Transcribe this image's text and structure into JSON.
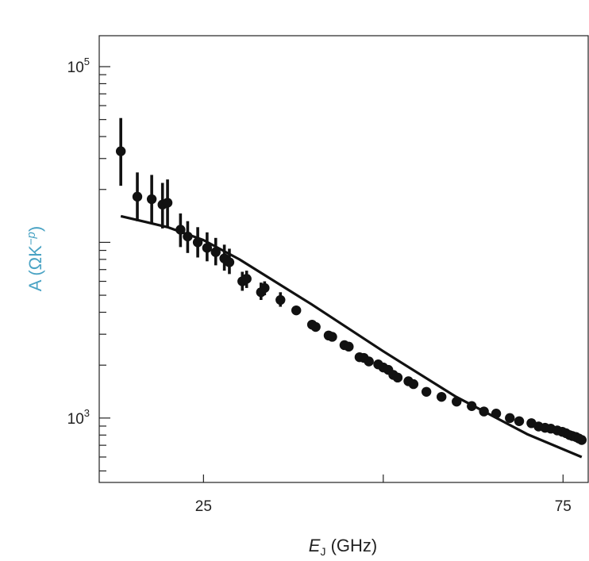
{
  "chart_data": {
    "type": "scatter",
    "title": "",
    "xlabel": {
      "main": "E",
      "sub": "J",
      "unit": " (GHz)"
    },
    "ylabel": {
      "main": "A (ΩK",
      "sup": "−p",
      "close": ")"
    },
    "ylabel_color": "#4aa3c4",
    "y_scale": "log",
    "xlim": [
      10.5,
      78.5
    ],
    "ylim": [
      430,
      150000
    ],
    "x_ticks": [
      25,
      50,
      75
    ],
    "x_tick_labels": [
      "25",
      "",
      "75"
    ],
    "y_tick_labels": [
      {
        "value": 100000,
        "base": "10",
        "exp": "5"
      },
      {
        "value": 1000,
        "base": "10",
        "exp": "3"
      }
    ],
    "grid": false,
    "points": [
      {
        "x": 13.5,
        "y": 33000,
        "err": [
          21000,
          51000
        ]
      },
      {
        "x": 15.8,
        "y": 18200,
        "err": [
          13200,
          25000
        ]
      },
      {
        "x": 17.8,
        "y": 17600,
        "err": [
          12900,
          24200
        ]
      },
      {
        "x": 19.3,
        "y": 16400,
        "err": [
          12000,
          21800
        ]
      },
      {
        "x": 20.0,
        "y": 16800,
        "err": [
          12200,
          22800
        ]
      },
      {
        "x": 21.8,
        "y": 11800,
        "err": [
          9400,
          14600
        ]
      },
      {
        "x": 22.8,
        "y": 10800,
        "err": [
          8700,
          13200
        ]
      },
      {
        "x": 24.2,
        "y": 10000,
        "err": [
          8200,
          12200
        ]
      },
      {
        "x": 25.5,
        "y": 9300,
        "err": [
          7800,
          11400
        ]
      },
      {
        "x": 26.7,
        "y": 8800,
        "err": [
          7400,
          10600
        ]
      },
      {
        "x": 27.9,
        "y": 8100,
        "err": [
          6900,
          9700
        ]
      },
      {
        "x": 28.6,
        "y": 7700,
        "err": [
          6600,
          9200
        ]
      },
      {
        "x": 30.4,
        "y": 6000,
        "err": [
          5300,
          6800
        ]
      },
      {
        "x": 31.0,
        "y": 6200,
        "err": [
          5500,
          6900
        ]
      },
      {
        "x": 33.0,
        "y": 5200,
        "err": [
          4700,
          5900
        ]
      },
      {
        "x": 33.5,
        "y": 5500,
        "err": [
          5000,
          6000
        ]
      },
      {
        "x": 35.7,
        "y": 4700,
        "err": [
          4300,
          5200
        ]
      },
      {
        "x": 37.9,
        "y": 4100
      },
      {
        "x": 40.1,
        "y": 3400
      },
      {
        "x": 40.6,
        "y": 3300
      },
      {
        "x": 42.4,
        "y": 2950
      },
      {
        "x": 42.9,
        "y": 2900
      },
      {
        "x": 44.6,
        "y": 2600
      },
      {
        "x": 45.2,
        "y": 2550
      },
      {
        "x": 46.7,
        "y": 2220
      },
      {
        "x": 47.3,
        "y": 2200
      },
      {
        "x": 48.0,
        "y": 2100
      },
      {
        "x": 49.3,
        "y": 2020
      },
      {
        "x": 50.0,
        "y": 1940
      },
      {
        "x": 50.7,
        "y": 1880
      },
      {
        "x": 51.4,
        "y": 1760
      },
      {
        "x": 52.0,
        "y": 1700
      },
      {
        "x": 53.5,
        "y": 1620
      },
      {
        "x": 54.2,
        "y": 1560
      },
      {
        "x": 56.0,
        "y": 1410
      },
      {
        "x": 58.1,
        "y": 1320
      },
      {
        "x": 60.2,
        "y": 1240
      },
      {
        "x": 62.3,
        "y": 1170
      },
      {
        "x": 64.0,
        "y": 1090
      },
      {
        "x": 65.7,
        "y": 1060
      },
      {
        "x": 67.6,
        "y": 1000
      },
      {
        "x": 68.9,
        "y": 960
      },
      {
        "x": 70.6,
        "y": 935
      },
      {
        "x": 71.6,
        "y": 895
      },
      {
        "x": 72.5,
        "y": 880
      },
      {
        "x": 73.3,
        "y": 870
      },
      {
        "x": 74.2,
        "y": 850
      },
      {
        "x": 74.9,
        "y": 835
      },
      {
        "x": 75.4,
        "y": 820
      },
      {
        "x": 75.9,
        "y": 800
      },
      {
        "x": 76.3,
        "y": 790
      },
      {
        "x": 76.8,
        "y": 780
      },
      {
        "x": 77.2,
        "y": 765
      },
      {
        "x": 77.6,
        "y": 750
      }
    ],
    "fit_line": [
      {
        "x": 13.5,
        "y": 14100
      },
      {
        "x": 17.0,
        "y": 13050
      },
      {
        "x": 20.0,
        "y": 12200
      },
      {
        "x": 25.0,
        "y": 10300
      },
      {
        "x": 30.0,
        "y": 8000
      },
      {
        "x": 40.0,
        "y": 4450
      },
      {
        "x": 50.0,
        "y": 2400
      },
      {
        "x": 60.0,
        "y": 1330
      },
      {
        "x": 70.0,
        "y": 810
      },
      {
        "x": 77.6,
        "y": 600
      }
    ]
  }
}
